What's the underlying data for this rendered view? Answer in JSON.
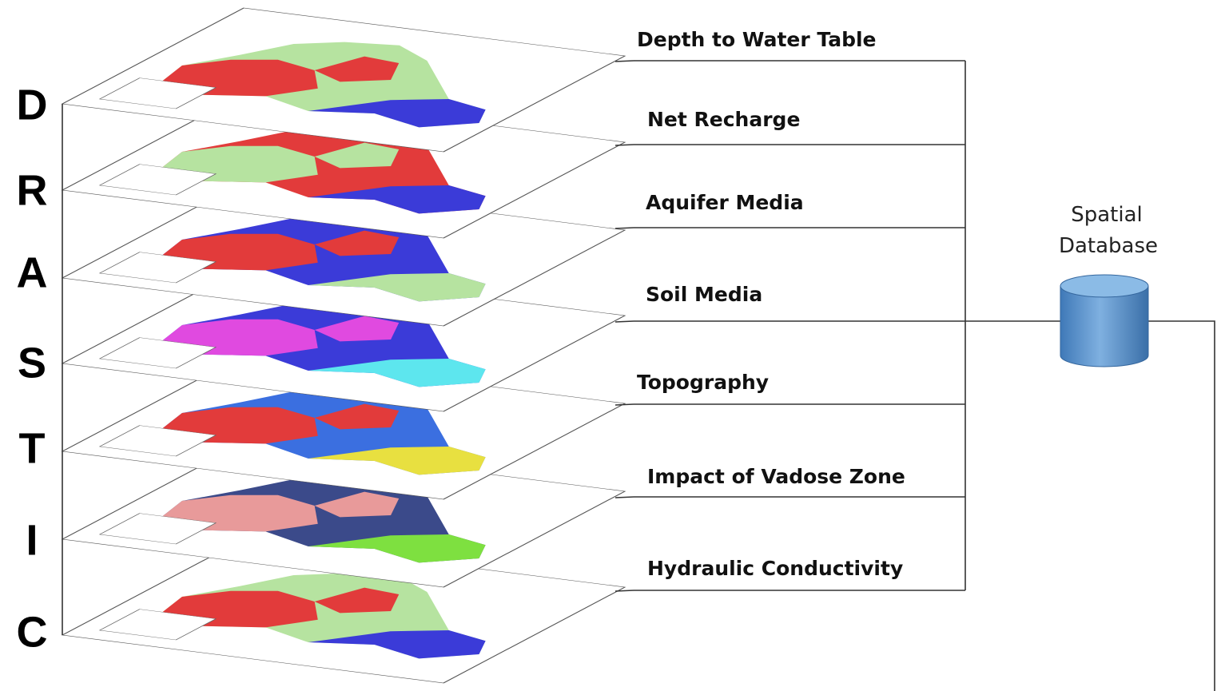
{
  "letters": [
    "D",
    "R",
    "A",
    "S",
    "T",
    "I",
    "C"
  ],
  "layers": [
    "Depth to Water Table",
    "Net Recharge",
    "Aquifer Media",
    "Soil Media",
    "Topography",
    "Impact of Vadose Zone",
    "Hydraulic Conductivity"
  ],
  "database": {
    "line1": "Spatial",
    "line2": "Database"
  }
}
